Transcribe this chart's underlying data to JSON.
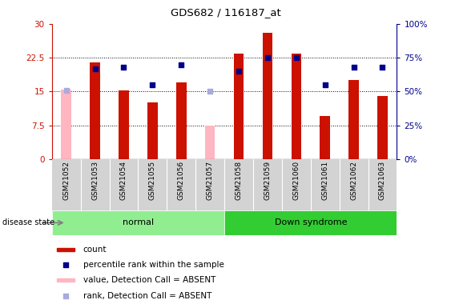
{
  "title": "GDS682 / 116187_at",
  "samples": [
    "GSM21052",
    "GSM21053",
    "GSM21054",
    "GSM21055",
    "GSM21056",
    "GSM21057",
    "GSM21058",
    "GSM21059",
    "GSM21060",
    "GSM21061",
    "GSM21062",
    "GSM21063"
  ],
  "count_values": [
    0,
    21.5,
    15.3,
    12.5,
    17.0,
    0,
    23.5,
    28.0,
    23.5,
    9.5,
    17.5,
    14.0
  ],
  "count_absent": [
    15.5,
    0,
    0,
    0,
    0,
    7.5,
    0,
    0,
    0,
    0,
    0,
    0
  ],
  "rank_values_pct": [
    0,
    67,
    68,
    55,
    70,
    0,
    65,
    75,
    75,
    55,
    68,
    68
  ],
  "rank_absent_pct": [
    51,
    0,
    0,
    0,
    0,
    50,
    0,
    0,
    0,
    0,
    0,
    0
  ],
  "absent_flags": [
    true,
    false,
    false,
    false,
    false,
    true,
    false,
    false,
    false,
    false,
    false,
    false
  ],
  "groups": [
    {
      "label": "normal",
      "start": 0,
      "end": 5,
      "color": "#90EE90"
    },
    {
      "label": "Down syndrome",
      "start": 6,
      "end": 11,
      "color": "#32CD32"
    }
  ],
  "ylim_left": [
    0,
    30
  ],
  "ylim_right": [
    0,
    100
  ],
  "yticks_left": [
    0,
    7.5,
    15,
    22.5,
    30
  ],
  "yticks_right": [
    0,
    25,
    50,
    75,
    100
  ],
  "ytick_labels_left": [
    "0",
    "7.5",
    "15",
    "22.5",
    "30"
  ],
  "ytick_labels_right": [
    "0%",
    "25%",
    "50%",
    "75%",
    "100%"
  ],
  "bar_color_present": "#CC1100",
  "bar_color_absent": "#FFB6C1",
  "dot_color_present": "#00008B",
  "dot_color_absent": "#AAAADD",
  "bar_width": 0.35,
  "dot_size": 22,
  "background_label": "#D3D3D3",
  "disease_label": "disease state",
  "legend_items": [
    {
      "label": "count",
      "color": "#CC1100",
      "type": "bar"
    },
    {
      "label": "percentile rank within the sample",
      "color": "#00008B",
      "type": "dot"
    },
    {
      "label": "value, Detection Call = ABSENT",
      "color": "#FFB6C1",
      "type": "bar"
    },
    {
      "label": "rank, Detection Call = ABSENT",
      "color": "#AAAADD",
      "type": "dot"
    }
  ]
}
